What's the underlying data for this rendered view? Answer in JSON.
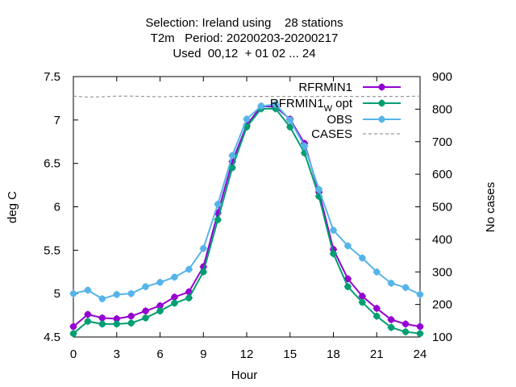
{
  "chart_data": {
    "type": "line",
    "title_lines": [
      "Selection: Ireland using    28 stations",
      "T2m   Period: 20200203-20200217",
      "Used  00,12  + 01 02 ... 24"
    ],
    "xlabel": "Hour",
    "ylabel": "deg C",
    "y2label": "No cases",
    "xlim": [
      0,
      24
    ],
    "ylim": [
      4.5,
      7.5
    ],
    "y2lim": [
      100,
      900
    ],
    "xticks": [
      0,
      3,
      6,
      9,
      12,
      15,
      18,
      21,
      24
    ],
    "yticks": [
      "4.5",
      "5",
      "5.5",
      "6",
      "6.5",
      "7",
      "7.5"
    ],
    "y2ticks": [
      "100",
      "200",
      "300",
      "400",
      "500",
      "600",
      "700",
      "800",
      "900"
    ],
    "legend_position": "top-right",
    "x": [
      0,
      1,
      2,
      3,
      4,
      5,
      6,
      7,
      8,
      9,
      10,
      11,
      12,
      13,
      14,
      15,
      16,
      17,
      18,
      19,
      20,
      21,
      22,
      23,
      24
    ],
    "series": [
      {
        "name": "RFRMIN1",
        "color": "#9400d3",
        "axis": "y",
        "values": [
          4.62,
          4.76,
          4.72,
          4.71,
          4.74,
          4.8,
          4.86,
          4.96,
          5.02,
          5.31,
          5.93,
          6.52,
          6.94,
          7.16,
          7.15,
          7.01,
          6.73,
          6.17,
          5.51,
          5.17,
          4.97,
          4.83,
          4.7,
          4.65,
          4.62
        ]
      },
      {
        "name": "RFRMIN1_w_opt",
        "legend_text": "RFRMIN1",
        "legend_subscript": "W",
        "legend_suffix": " opt",
        "color": "#009e73",
        "axis": "y",
        "values": [
          4.54,
          4.68,
          4.65,
          4.65,
          4.66,
          4.72,
          4.8,
          4.89,
          4.95,
          5.25,
          5.85,
          6.45,
          6.92,
          7.13,
          7.13,
          6.92,
          6.62,
          6.12,
          5.46,
          5.08,
          4.9,
          4.74,
          4.61,
          4.56,
          4.54
        ]
      },
      {
        "name": "OBS",
        "color": "#56b4e9",
        "axis": "y",
        "values": [
          5.0,
          5.04,
          4.94,
          4.99,
          5.0,
          5.08,
          5.13,
          5.19,
          5.28,
          5.52,
          6.03,
          6.59,
          7.01,
          7.16,
          7.18,
          7.0,
          6.7,
          6.2,
          5.73,
          5.55,
          5.41,
          5.25,
          5.12,
          5.07,
          4.99
        ]
      },
      {
        "name": "CASES",
        "color": "#999999",
        "axis": "y2",
        "dashed": true,
        "values": [
          840,
          837,
          838,
          840,
          840,
          839,
          838,
          839,
          839,
          839,
          839,
          839,
          839,
          839,
          839,
          839,
          839,
          839,
          839,
          839,
          839,
          839,
          839,
          839,
          840
        ]
      }
    ]
  }
}
